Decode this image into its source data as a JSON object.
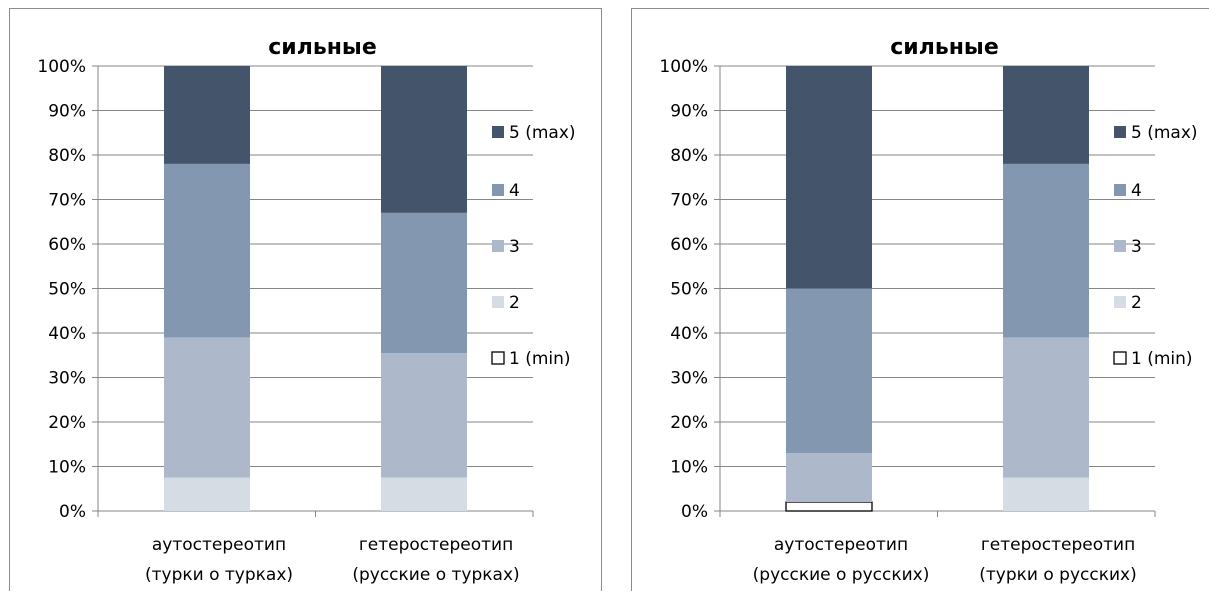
{
  "colors": {
    "5 (max)": "#44546a",
    "4": "#8497b0",
    "3": "#adb9ca",
    "2": "#d6dce4",
    "1 (min)": "#ffffff",
    "grid": "#868686",
    "axis": "#868686"
  },
  "chart_data": [
    {
      "type": "bar",
      "stacked": "percent",
      "title": "сильные",
      "categories": [
        "аутостереотип\n(турки о турках)",
        "гетеростереотип\n(русские о турках)"
      ],
      "yticks": [
        "0%",
        "10%",
        "20%",
        "30%",
        "40%",
        "50%",
        "60%",
        "70%",
        "80%",
        "90%",
        "100%"
      ],
      "ylim": [
        0,
        100
      ],
      "grid": true,
      "legend_position": "right",
      "series": [
        {
          "name": "1 (min)",
          "values": [
            0,
            0
          ]
        },
        {
          "name": "2",
          "values": [
            7.5,
            7.5
          ]
        },
        {
          "name": "3",
          "values": [
            31.5,
            28
          ]
        },
        {
          "name": "4",
          "values": [
            39,
            31.5
          ]
        },
        {
          "name": "5 (max)",
          "values": [
            22,
            33
          ]
        }
      ]
    },
    {
      "type": "bar",
      "stacked": "percent",
      "title": "сильные",
      "categories": [
        "аутостереотип\n(русские о русских)",
        "гетеростереотип\n(турки о русских)"
      ],
      "yticks": [
        "0%",
        "10%",
        "20%",
        "30%",
        "40%",
        "50%",
        "60%",
        "70%",
        "80%",
        "90%",
        "100%"
      ],
      "ylim": [
        0,
        100
      ],
      "grid": true,
      "legend_position": "right",
      "series": [
        {
          "name": "1 (min)",
          "values": [
            2,
            0
          ]
        },
        {
          "name": "2",
          "values": [
            0,
            7.5
          ]
        },
        {
          "name": "3",
          "values": [
            11,
            31.5
          ]
        },
        {
          "name": "4",
          "values": [
            37,
            39
          ]
        },
        {
          "name": "5 (max)",
          "values": [
            50,
            22
          ]
        }
      ]
    }
  ]
}
